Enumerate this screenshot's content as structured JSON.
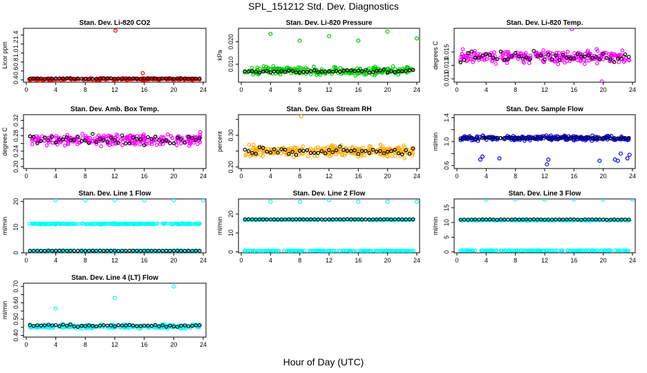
{
  "title": "SPL_151212  Std. Dev. Diagnostics",
  "xlabel": "Hour of Day (UTC)",
  "colors": {
    "daily_mean": "#000000",
    "co2": "#ff0000",
    "pressure": "#00cc00",
    "temp": "#ff00ff",
    "rh": "#ffaa00",
    "sample_flow": "#0000ff",
    "line_flow": "#00ffff"
  },
  "chart_data": [
    {
      "type": "scatter",
      "title": "Stan. Dev. Li-820 CO2",
      "xlabel": "",
      "ylabel": "Licor ppm",
      "xlim": [
        0,
        24
      ],
      "ylim": [
        0.35,
        1.55
      ],
      "xticks": [
        0,
        4,
        8,
        12,
        16,
        20,
        24
      ],
      "yticks": [
        0.4,
        0.6,
        0.8,
        1.0,
        1.2,
        1.4
      ],
      "yticklabels": [
        "0.4",
        "0.6",
        "0.8",
        "1.0",
        "1.2",
        "1.4"
      ],
      "color": "#ff0000",
      "band": {
        "center": 0.42,
        "spread": 0.03
      },
      "outliers": [
        {
          "x": 12.1,
          "y": 1.5
        },
        {
          "x": 15.8,
          "y": 0.55
        }
      ],
      "mean_band": {
        "center": 0.43,
        "spread": 0.015
      }
    },
    {
      "type": "scatter",
      "title": "Stan. Dev. Li-820 Pressure",
      "xlabel": "",
      "ylabel": "kPa",
      "xlim": [
        0,
        24
      ],
      "ylim": [
        0.002,
        0.026
      ],
      "xticks": [
        0,
        4,
        8,
        12,
        16,
        20,
        24
      ],
      "yticks": [
        0.01,
        0.02
      ],
      "yticklabels": [
        "0.010",
        "0.020"
      ],
      "color": "#00cc00",
      "band": {
        "center": 0.007,
        "spread": 0.0025
      },
      "outliers": [
        {
          "x": 4.0,
          "y": 0.0235
        },
        {
          "x": 8.0,
          "y": 0.0205
        },
        {
          "x": 12.0,
          "y": 0.0225
        },
        {
          "x": 16.0,
          "y": 0.0205
        },
        {
          "x": 20.0,
          "y": 0.0245
        },
        {
          "x": 24.0,
          "y": 0.0215
        }
      ],
      "mean_band": {
        "center": 0.0068,
        "spread": 0.001
      }
    },
    {
      "type": "scatter",
      "title": "Stan. Dev. Li-820 Temp.",
      "xlabel": "",
      "ylabel": "degrees C",
      "xlim": [
        0,
        24
      ],
      "ylim": [
        0.0105,
        0.0185
      ],
      "xticks": [
        0,
        4,
        8,
        12,
        16,
        20,
        24
      ],
      "yticks": [
        0.011,
        0.013,
        0.015
      ],
      "yticklabels": [
        "0.011",
        "0.013",
        "0.015"
      ],
      "color": "#ff00ff",
      "band": {
        "center": 0.0143,
        "spread": 0.0013
      },
      "outliers": [
        {
          "x": 15.7,
          "y": 0.0184
        },
        {
          "x": 19.8,
          "y": 0.0106
        }
      ],
      "mean_band": {
        "center": 0.0142,
        "spread": 0.0011
      }
    },
    {
      "type": "scatter",
      "title": "Stan. Dev. Amb. Box Temp.",
      "xlabel": "",
      "ylabel": "degrees C",
      "xlim": [
        0,
        24
      ],
      "ylim": [
        0.195,
        0.335
      ],
      "xticks": [
        0,
        4,
        8,
        12,
        16,
        20,
        24
      ],
      "yticks": [
        0.2,
        0.22,
        0.24,
        0.26,
        0.28,
        0.3,
        0.32
      ],
      "yticklabels": [
        "0.20",
        "",
        "0.24",
        "",
        "0.28",
        "",
        "0.32"
      ],
      "color": "#ff00ff",
      "band": {
        "center": 0.27,
        "spread": 0.022
      },
      "outliers": [],
      "mean_band": {
        "center": 0.27,
        "spread": 0.018
      }
    },
    {
      "type": "scatter",
      "title": "Stan. Dev. Gas Stream RH",
      "xlabel": "",
      "ylabel": "percent",
      "xlim": [
        0,
        24
      ],
      "ylim": [
        0.195,
        0.365
      ],
      "xticks": [
        0,
        4,
        8,
        12,
        16,
        20,
        24
      ],
      "yticks": [
        0.2,
        0.25,
        0.3,
        0.35
      ],
      "yticklabels": [
        "0.20",
        "",
        "0.30",
        ""
      ],
      "color": "#ffaa00",
      "band": {
        "center": 0.25,
        "spread": 0.025
      },
      "outliers": [
        {
          "x": 8.2,
          "y": 0.36
        }
      ],
      "mean_band": {
        "center": 0.25,
        "spread": 0.02
      }
    },
    {
      "type": "scatter",
      "title": "Stan. Dev. Sample Flow",
      "xlabel": "",
      "ylabel": "ml/min",
      "xlim": [
        0,
        24
      ],
      "ylim": [
        0.55,
        1.45
      ],
      "xticks": [
        0,
        4,
        8,
        12,
        16,
        20,
        24
      ],
      "yticks": [
        0.6,
        0.8,
        1.0,
        1.2,
        1.4
      ],
      "yticklabels": [
        "0.6",
        "",
        "1.0",
        "",
        "1.4"
      ],
      "color": "#0000ff",
      "band": {
        "center": 1.06,
        "spread": 0.06
      },
      "outliers": [
        {
          "x": 3.2,
          "y": 0.7
        },
        {
          "x": 3.5,
          "y": 0.75
        },
        {
          "x": 5.8,
          "y": 0.72
        },
        {
          "x": 12.3,
          "y": 0.62
        },
        {
          "x": 12.5,
          "y": 0.7
        },
        {
          "x": 19.5,
          "y": 0.68
        },
        {
          "x": 21.6,
          "y": 0.7
        },
        {
          "x": 22.0,
          "y": 0.68
        },
        {
          "x": 22.4,
          "y": 0.8
        },
        {
          "x": 23.3,
          "y": 0.72
        },
        {
          "x": 23.6,
          "y": 0.78
        }
      ],
      "mean_band": {
        "center": 1.06,
        "spread": 0.03
      }
    },
    {
      "type": "scatter",
      "title": "Stan. Dev. Line 1 Flow",
      "xlabel": "",
      "ylabel": "ml/min",
      "xlim": [
        0,
        24
      ],
      "ylim": [
        0,
        21
      ],
      "xticks": [
        0,
        4,
        8,
        12,
        16,
        20,
        24
      ],
      "yticks": [
        0,
        10,
        20
      ],
      "yticklabels": [
        "0",
        "10",
        "20"
      ],
      "color": "#00ffff",
      "band": {
        "center": 11.3,
        "spread": 0.35
      },
      "band2": {
        "center": 0.8,
        "spread": 0.15
      },
      "outliers": [
        {
          "x": 4.0,
          "y": 20.5
        },
        {
          "x": 8.0,
          "y": 20.5
        },
        {
          "x": 12.0,
          "y": 20.5
        },
        {
          "x": 16.0,
          "y": 20.5
        },
        {
          "x": 20.0,
          "y": 20.5
        },
        {
          "x": 24.0,
          "y": 20.5
        }
      ],
      "mean_band": {
        "center": 0.8,
        "spread": 0.1
      }
    },
    {
      "type": "scatter",
      "title": "Stan. Dev. Line 2 Flow",
      "xlabel": "",
      "ylabel": "ml/min",
      "xlim": [
        0,
        24
      ],
      "ylim": [
        -0.5,
        28
      ],
      "xticks": [
        0,
        4,
        8,
        12,
        16,
        20,
        24
      ],
      "yticks": [
        0,
        10,
        20
      ],
      "yticklabels": [
        "0",
        "10",
        "20"
      ],
      "color": "#00ffff",
      "band": {
        "center": 17.0,
        "spread": 0.4
      },
      "band2": {
        "center": 0.6,
        "spread": 0.15
      },
      "outliers": [
        {
          "x": 4.0,
          "y": 26.5
        },
        {
          "x": 8.0,
          "y": 26.5
        },
        {
          "x": 12.0,
          "y": 27.5
        },
        {
          "x": 16.0,
          "y": 26.5
        },
        {
          "x": 20.0,
          "y": 26.5
        },
        {
          "x": 24.0,
          "y": 26.5
        }
      ],
      "mean_band": {
        "center": 17.2,
        "spread": 0.15
      }
    },
    {
      "type": "scatter",
      "title": "Stan. Dev. Line 3 Flow",
      "xlabel": "",
      "ylabel": "ml/min",
      "xlim": [
        0,
        24
      ],
      "ylim": [
        -0.3,
        18
      ],
      "xticks": [
        0,
        4,
        8,
        12,
        16,
        20,
        24
      ],
      "yticks": [
        0,
        5,
        10,
        15
      ],
      "yticklabels": [
        "0",
        "5",
        "10",
        "15"
      ],
      "color": "#00ffff",
      "band": {
        "center": 10.8,
        "spread": 0.3
      },
      "band2": {
        "center": 0.5,
        "spread": 0.12
      },
      "outliers": [
        {
          "x": 4.0,
          "y": 17.8
        },
        {
          "x": 8.0,
          "y": 17.8
        },
        {
          "x": 12.0,
          "y": 17.8
        },
        {
          "x": 16.0,
          "y": 17.8
        },
        {
          "x": 20.0,
          "y": 17.8
        },
        {
          "x": 24.0,
          "y": 17.8
        }
      ],
      "mean_band": {
        "center": 11.0,
        "spread": 0.12
      }
    },
    {
      "type": "scatter",
      "title": "Stan. Dev. Line 4 (LT) Flow",
      "xlabel": "",
      "ylabel": "ml/min",
      "xlim": [
        0,
        24
      ],
      "ylim": [
        0.39,
        0.72
      ],
      "xticks": [
        0,
        4,
        8,
        12,
        16,
        20,
        24
      ],
      "yticks": [
        0.4,
        0.45,
        0.5,
        0.55,
        0.6,
        0.65,
        0.7
      ],
      "yticklabels": [
        "0.40",
        "",
        "0.50",
        "",
        "0.60",
        "",
        "0.70"
      ],
      "color": "#00ffff",
      "band": {
        "center": 0.455,
        "spread": 0.018
      },
      "outliers": [
        {
          "x": 4.0,
          "y": 0.565
        },
        {
          "x": 12.0,
          "y": 0.63
        },
        {
          "x": 20.0,
          "y": 0.7
        }
      ],
      "mean_band": {
        "center": 0.46,
        "spread": 0.012
      }
    }
  ]
}
